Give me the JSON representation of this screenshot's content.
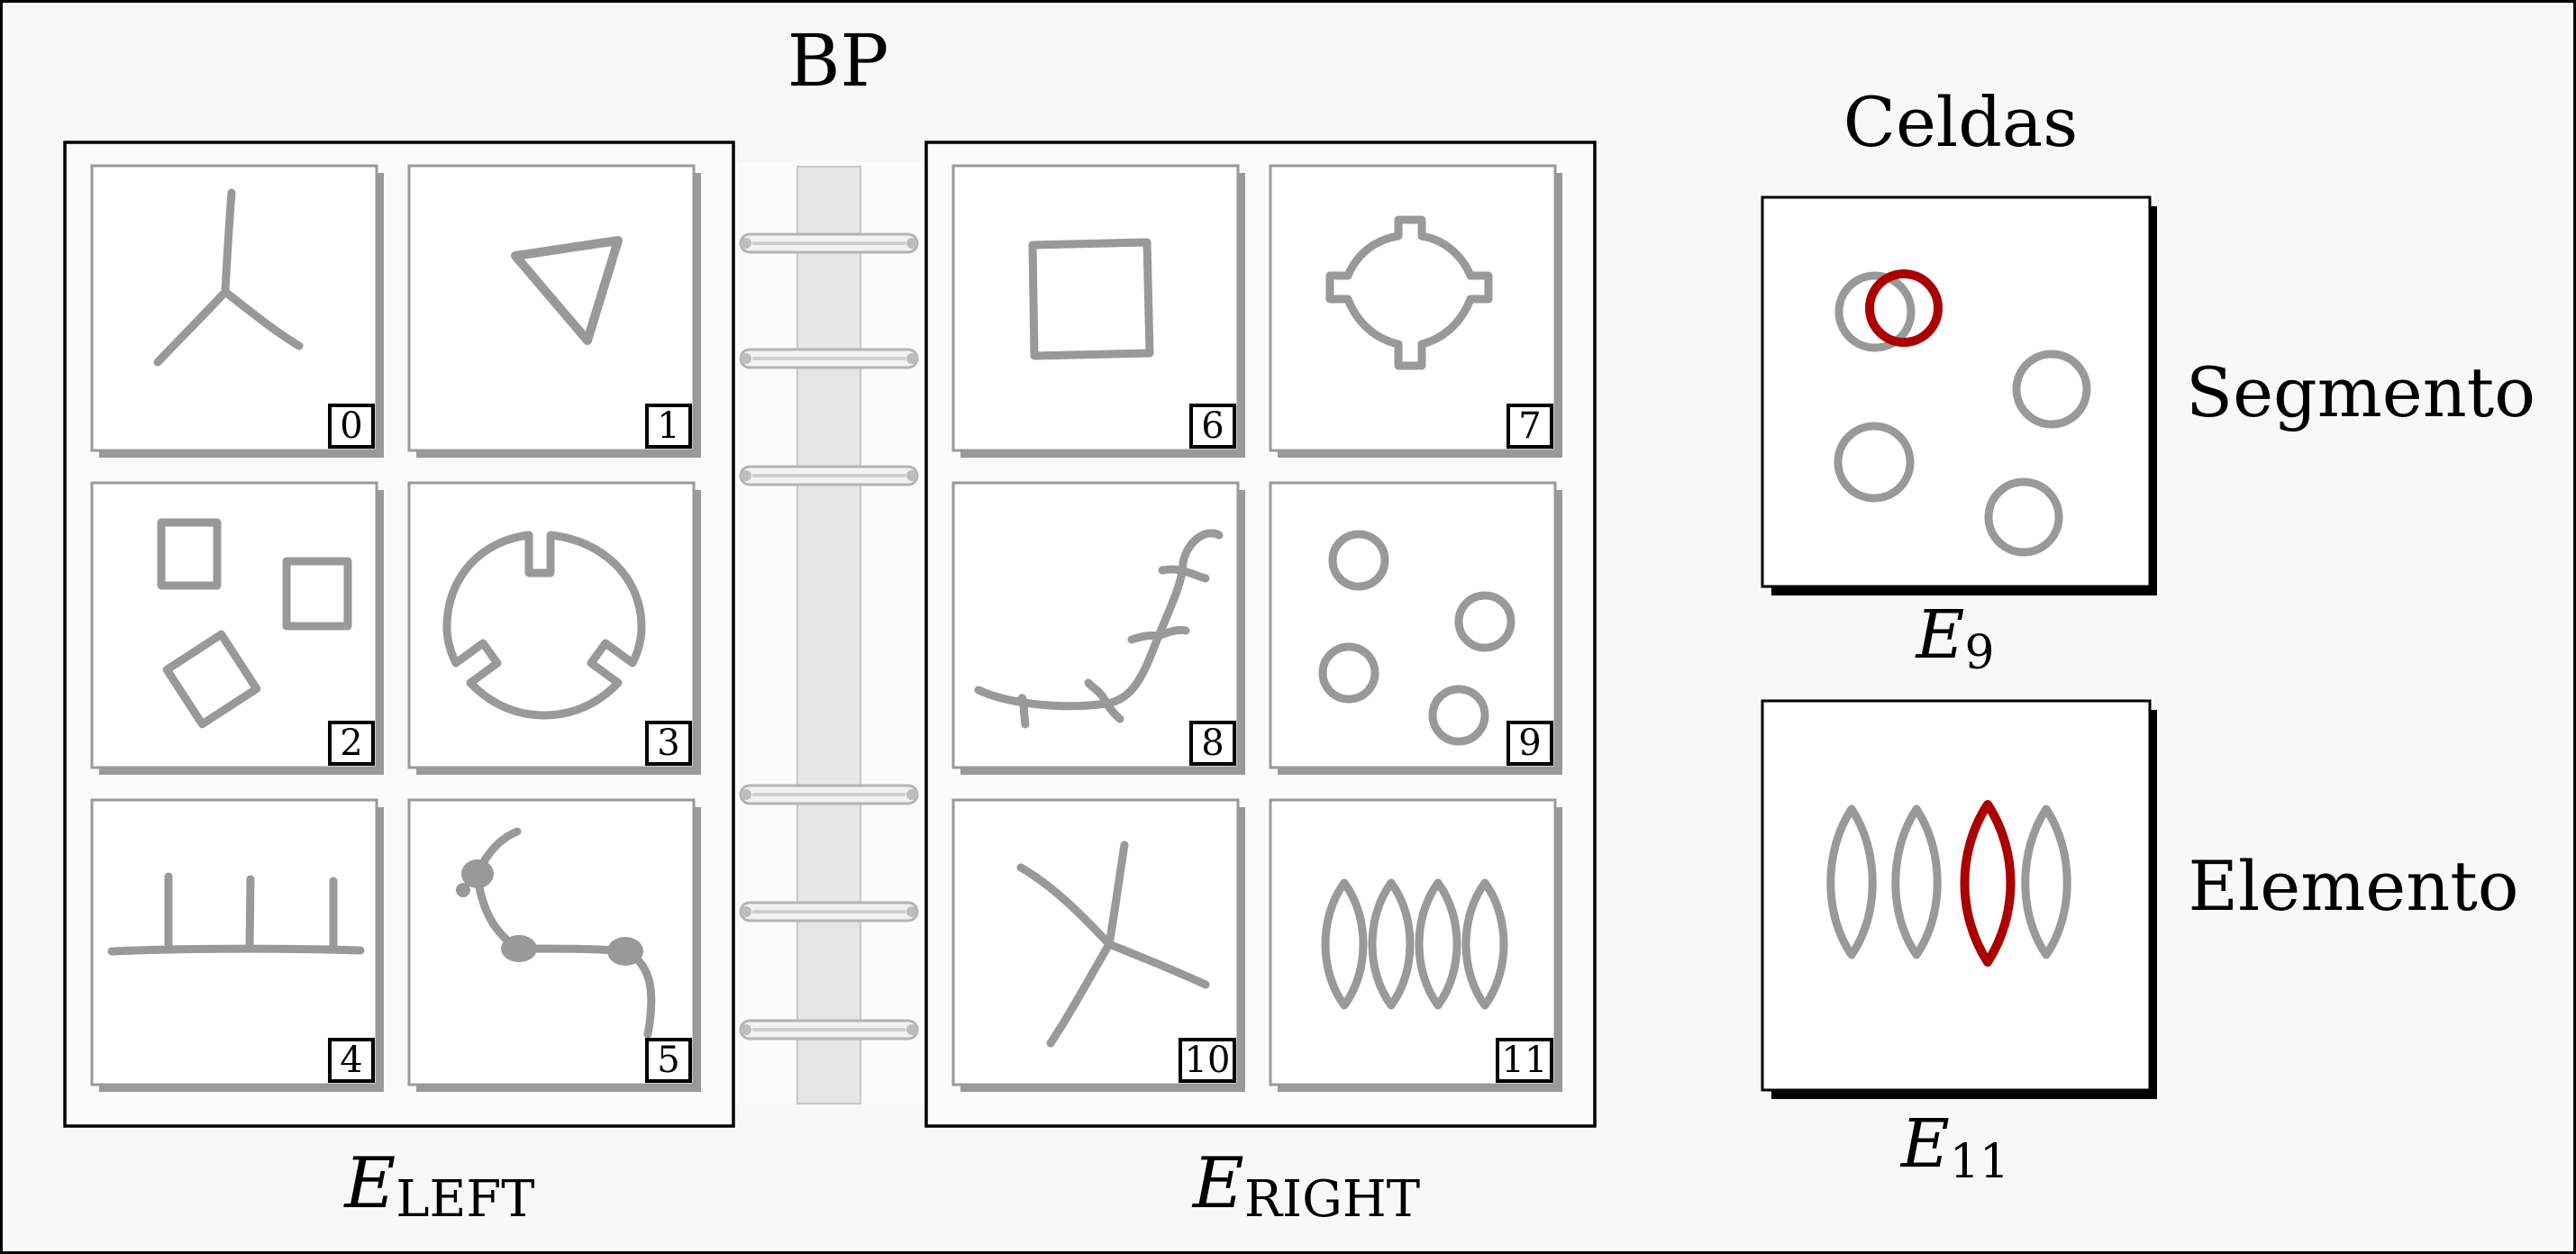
{
  "title": "BP",
  "left_page": {
    "label_main": "E",
    "label_sub": "LEFT",
    "panels": [
      {
        "index": "0",
        "shape": "three-prong-star"
      },
      {
        "index": "1",
        "shape": "triangle"
      },
      {
        "index": "2",
        "shape": "three-squares"
      },
      {
        "index": "3",
        "shape": "notched-circle"
      },
      {
        "index": "4",
        "shape": "line-with-three-ticks"
      },
      {
        "index": "5",
        "shape": "beaded-curve"
      }
    ]
  },
  "right_page": {
    "label_main": "E",
    "label_sub": "RIGHT",
    "panels": [
      {
        "index": "6",
        "shape": "square"
      },
      {
        "index": "7",
        "shape": "four-tab-circle"
      },
      {
        "index": "8",
        "shape": "branched-curve"
      },
      {
        "index": "9",
        "shape": "four-small-circles"
      },
      {
        "index": "10",
        "shape": "four-prong-star"
      },
      {
        "index": "11",
        "shape": "four-lenses"
      }
    ]
  },
  "cells": {
    "title": "Celdas",
    "top": {
      "label_main": "E",
      "label_sub": "9",
      "caption": "Segmento"
    },
    "bottom": {
      "label_main": "E",
      "label_sub": "11",
      "caption": "Elemento"
    }
  },
  "colors": {
    "page_background": "#f8f8f8",
    "shape_gray": "#999999",
    "panel_shadow": "#999999",
    "highlight_red": "#aa0000",
    "ink": "#000000",
    "binder_spine": "#e6e6e6"
  }
}
